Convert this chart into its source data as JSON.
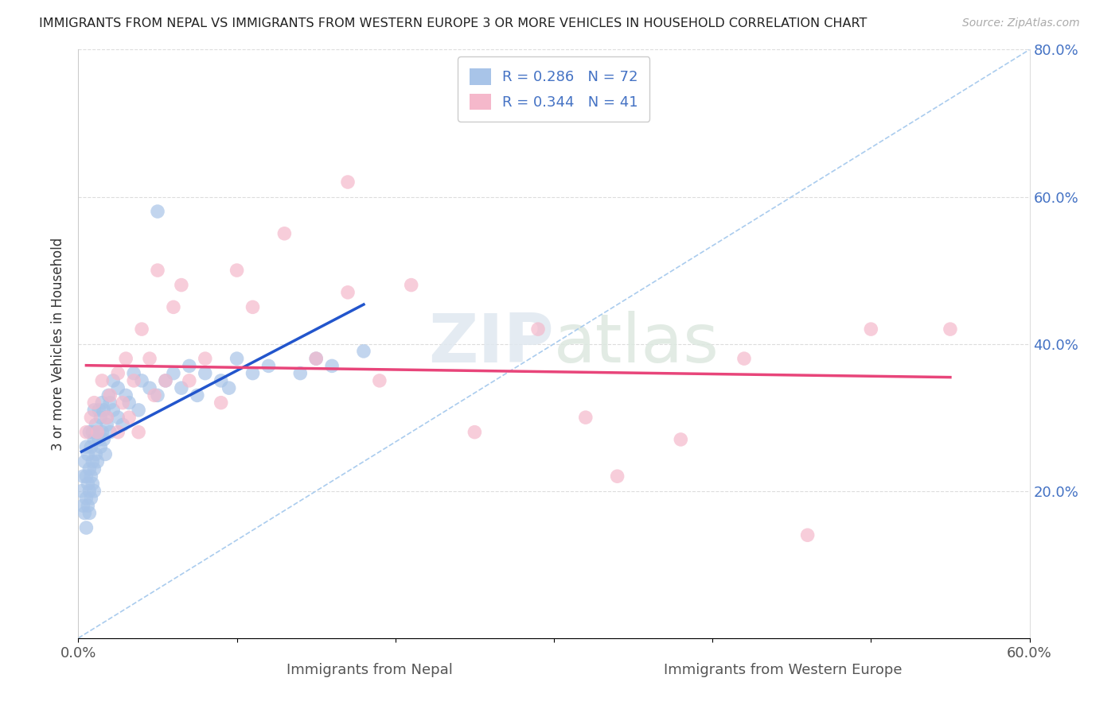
{
  "title": "IMMIGRANTS FROM NEPAL VS IMMIGRANTS FROM WESTERN EUROPE 3 OR MORE VEHICLES IN HOUSEHOLD CORRELATION CHART",
  "source": "Source: ZipAtlas.com",
  "ylabel": "3 or more Vehicles in Household",
  "xlabel_nepal": "Immigrants from Nepal",
  "xlabel_weurope": "Immigrants from Western Europe",
  "xlim": [
    0.0,
    0.6
  ],
  "ylim": [
    0.0,
    0.8
  ],
  "nepal_R": 0.286,
  "nepal_N": 72,
  "weurope_R": 0.344,
  "weurope_N": 41,
  "nepal_color": "#a8c4e8",
  "weurope_color": "#f5b8cb",
  "nepal_line_color": "#2255cc",
  "weurope_line_color": "#e8457a",
  "diag_line_color": "#aaccee",
  "ytick_color": "#4472c4",
  "background_color": "#ffffff",
  "nepal_x": [
    0.002,
    0.003,
    0.003,
    0.004,
    0.004,
    0.005,
    0.005,
    0.005,
    0.005,
    0.006,
    0.006,
    0.006,
    0.007,
    0.007,
    0.007,
    0.007,
    0.008,
    0.008,
    0.008,
    0.009,
    0.009,
    0.009,
    0.01,
    0.01,
    0.01,
    0.01,
    0.011,
    0.011,
    0.012,
    0.012,
    0.013,
    0.013,
    0.014,
    0.014,
    0.015,
    0.015,
    0.016,
    0.016,
    0.017,
    0.018,
    0.018,
    0.019,
    0.02,
    0.02,
    0.022,
    0.022,
    0.025,
    0.025,
    0.028,
    0.03,
    0.032,
    0.035,
    0.038,
    0.04,
    0.045,
    0.05,
    0.055,
    0.06,
    0.065,
    0.07,
    0.075,
    0.08,
    0.09,
    0.095,
    0.1,
    0.11,
    0.12,
    0.14,
    0.15,
    0.16,
    0.18,
    0.05
  ],
  "nepal_y": [
    0.2,
    0.18,
    0.22,
    0.17,
    0.24,
    0.15,
    0.19,
    0.22,
    0.26,
    0.18,
    0.21,
    0.25,
    0.2,
    0.23,
    0.17,
    0.28,
    0.22,
    0.26,
    0.19,
    0.24,
    0.21,
    0.28,
    0.23,
    0.27,
    0.2,
    0.31,
    0.25,
    0.29,
    0.24,
    0.28,
    0.27,
    0.31,
    0.26,
    0.3,
    0.28,
    0.32,
    0.27,
    0.31,
    0.25,
    0.3,
    0.29,
    0.33,
    0.28,
    0.32,
    0.31,
    0.35,
    0.3,
    0.34,
    0.29,
    0.33,
    0.32,
    0.36,
    0.31,
    0.35,
    0.34,
    0.33,
    0.35,
    0.36,
    0.34,
    0.37,
    0.33,
    0.36,
    0.35,
    0.34,
    0.38,
    0.36,
    0.37,
    0.36,
    0.38,
    0.37,
    0.39,
    0.58
  ],
  "weurope_x": [
    0.005,
    0.008,
    0.01,
    0.012,
    0.015,
    0.018,
    0.02,
    0.025,
    0.025,
    0.028,
    0.03,
    0.032,
    0.035,
    0.038,
    0.04,
    0.045,
    0.048,
    0.05,
    0.055,
    0.06,
    0.065,
    0.07,
    0.08,
    0.09,
    0.1,
    0.11,
    0.13,
    0.15,
    0.17,
    0.19,
    0.21,
    0.25,
    0.29,
    0.34,
    0.38,
    0.42,
    0.46,
    0.5,
    0.55,
    0.32,
    0.17
  ],
  "weurope_y": [
    0.28,
    0.3,
    0.32,
    0.28,
    0.35,
    0.3,
    0.33,
    0.36,
    0.28,
    0.32,
    0.38,
    0.3,
    0.35,
    0.28,
    0.42,
    0.38,
    0.33,
    0.5,
    0.35,
    0.45,
    0.48,
    0.35,
    0.38,
    0.32,
    0.5,
    0.45,
    0.55,
    0.38,
    0.47,
    0.35,
    0.48,
    0.28,
    0.42,
    0.22,
    0.27,
    0.38,
    0.14,
    0.42,
    0.42,
    0.3,
    0.62
  ]
}
